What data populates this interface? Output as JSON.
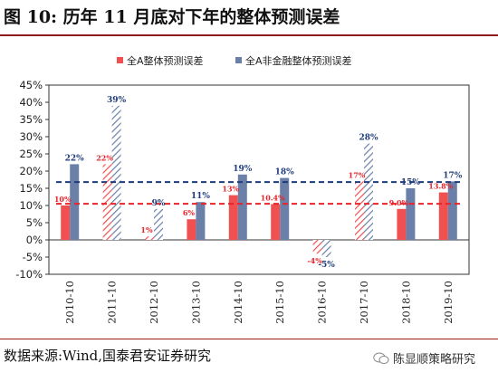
{
  "figure": {
    "title": "图 10:  历年 11 月底对下年的整体预测误差",
    "source": "数据来源:Wind,国泰君安证券研究",
    "brand": "陈显顺策略研究",
    "brand_icon": "wechat-icon"
  },
  "chart_data": {
    "type": "bar",
    "categories": [
      "2010-10",
      "2011-10",
      "2012-10",
      "2013-10",
      "2014-10",
      "2015-10",
      "2016-10",
      "2017-10",
      "2018-10",
      "2019-10"
    ],
    "series": [
      {
        "name": "全A整体预测误差",
        "color": "#f05050",
        "values": [
          10,
          22,
          1,
          6,
          13,
          10.4,
          -4,
          17,
          9.0,
          13.8
        ],
        "labels": [
          "10%",
          "22%",
          "1%",
          "6%",
          "13%",
          "10.4%",
          "-4%",
          "17%",
          "9.0%",
          "13.8%"
        ],
        "hatched": [
          false,
          true,
          true,
          false,
          false,
          false,
          true,
          true,
          false,
          false
        ]
      },
      {
        "name": "全A非金融整体预测误差",
        "color": "#6a80a8",
        "values": [
          22,
          39,
          9,
          11,
          19,
          18,
          -5,
          28,
          15,
          17
        ],
        "labels": [
          "22%",
          "39%",
          "9%",
          "11%",
          "19%",
          "18%",
          "-5%",
          "28%",
          "15%",
          "17%"
        ],
        "hatched": [
          false,
          true,
          true,
          false,
          false,
          false,
          true,
          true,
          false,
          false
        ]
      }
    ],
    "reference_lines": [
      {
        "value": 10.5,
        "color": "#e8242a",
        "style": "dashed"
      },
      {
        "value": 16.8,
        "color": "#1f3c7a",
        "style": "dashed"
      }
    ],
    "y_ticks": [
      "45%",
      "40%",
      "35%",
      "30%",
      "25%",
      "20%",
      "15%",
      "10%",
      "5%",
      "0%",
      "-5%",
      "-10%"
    ],
    "ylim": [
      -10,
      45
    ],
    "legend_position": "top",
    "grid": false
  }
}
